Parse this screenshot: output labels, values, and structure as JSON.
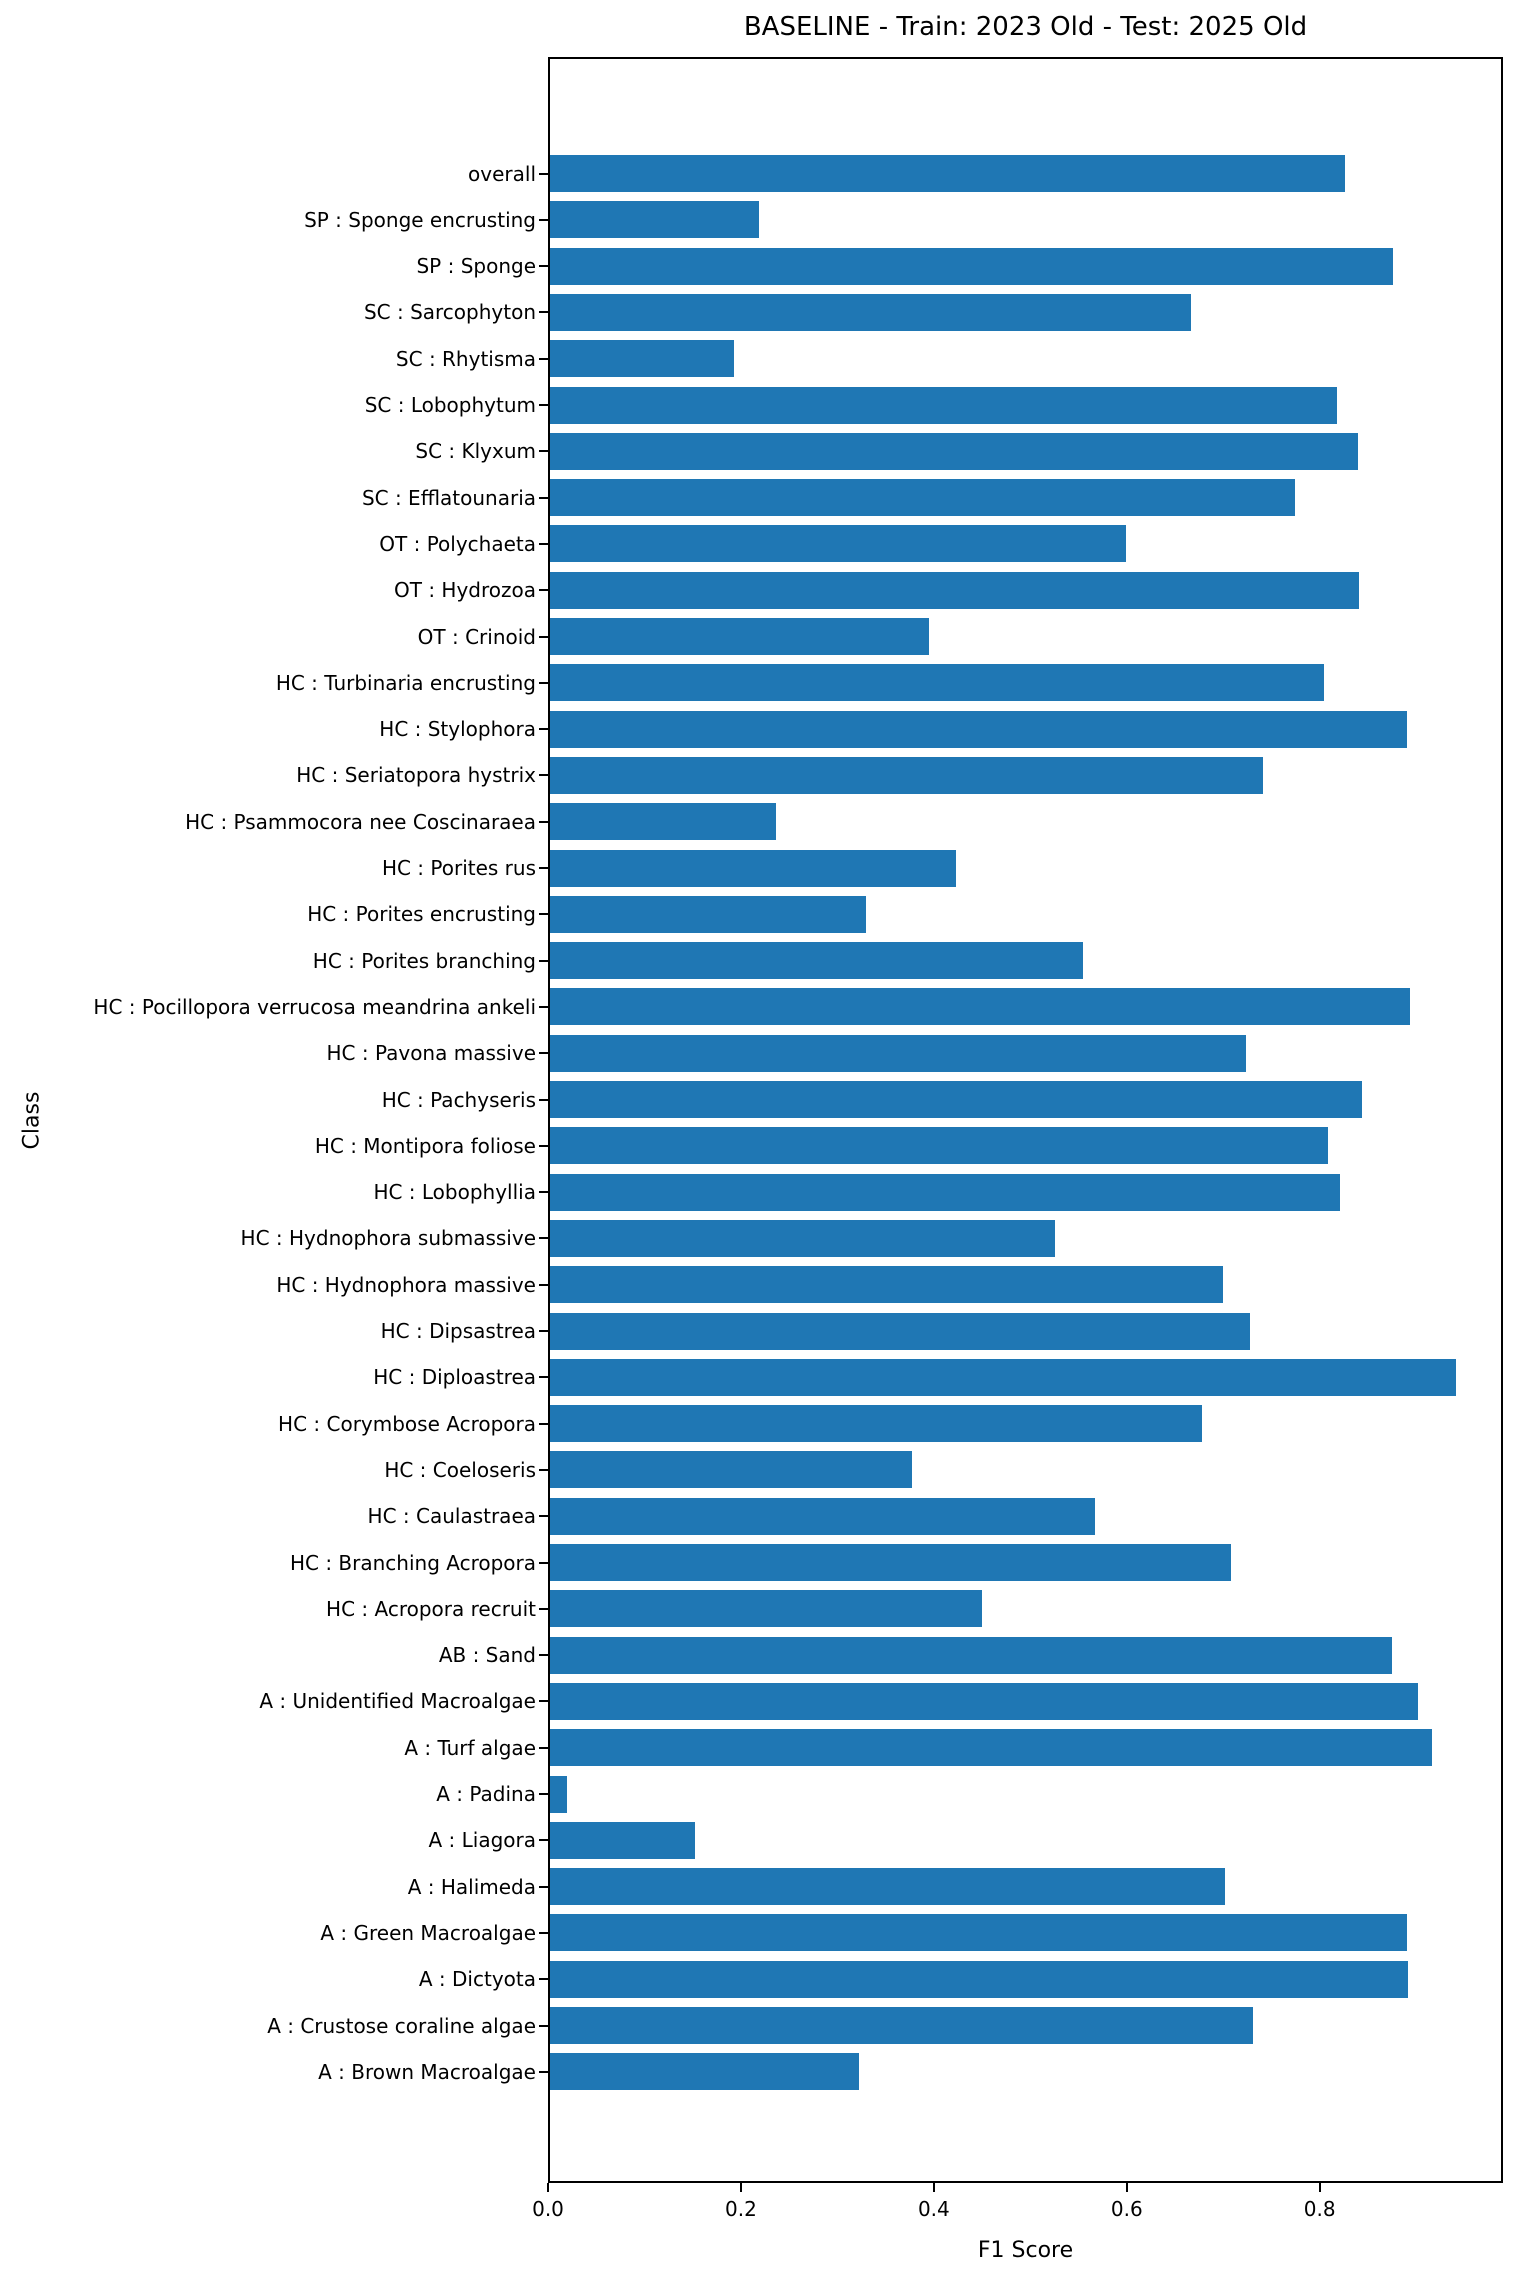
{
  "chart_data": {
    "type": "bar",
    "orientation": "horizontal",
    "title": "BASELINE - Train: 2023 Old - Test: 2025 Old",
    "xlabel": "F1 Score",
    "ylabel": "Class",
    "xlim": [
      0.0,
      0.99
    ],
    "xticks": [
      0.0,
      0.2,
      0.4,
      0.6,
      0.8
    ],
    "xtick_labels": [
      "0.0",
      "0.2",
      "0.4",
      "0.6",
      "0.8"
    ],
    "grid": false,
    "legend": null,
    "bar_color": "#1f77b4",
    "categories": [
      "overall",
      "SP : Sponge encrusting",
      "SP : Sponge",
      "SC : Sarcophyton",
      "SC : Rhytisma",
      "SC : Lobophytum",
      "SC : Klyxum",
      "SC : Efflatounaria",
      "OT : Polychaeta",
      "OT : Hydrozoa",
      "OT : Crinoid",
      "HC : Turbinaria encrusting",
      "HC : Stylophora",
      "HC : Seriatopora hystrix",
      "HC : Psammocora nee Coscinaraea",
      "HC : Porites rus",
      "HC : Porites encrusting",
      "HC : Porites branching",
      "HC : Pocillopora verrucosa meandrina ankeli",
      "HC : Pavona massive",
      "HC : Pachyseris",
      "HC : Montipora foliose",
      "HC : Lobophyllia",
      "HC : Hydnophora submassive",
      "HC : Hydnophora massive",
      "HC : Dipsastrea",
      "HC : Diploastrea",
      "HC : Corymbose Acropora",
      "HC : Coeloseris",
      "HC : Caulastraea",
      "HC : Branching Acropora",
      "HC : Acropora recruit",
      "AB : Sand",
      "A : Unidentified Macroalgae",
      "A : Turf algae",
      "A : Padina",
      "A : Liagora",
      "A : Halimeda",
      "A : Green Macroalgae",
      "A : Dictyota",
      "A : Crustose coraline algae",
      "A : Brown Macroalgae"
    ],
    "values": [
      0.828,
      0.218,
      0.877,
      0.667,
      0.192,
      0.819,
      0.841,
      0.775,
      0.6,
      0.842,
      0.395,
      0.806,
      0.892,
      0.742,
      0.235,
      0.423,
      0.329,
      0.555,
      0.895,
      0.724,
      0.845,
      0.81,
      0.822,
      0.526,
      0.701,
      0.729,
      0.943,
      0.679,
      0.377,
      0.567,
      0.709,
      0.45,
      0.876,
      0.904,
      0.918,
      0.018,
      0.151,
      0.703,
      0.892,
      0.893,
      0.732,
      0.322
    ]
  }
}
